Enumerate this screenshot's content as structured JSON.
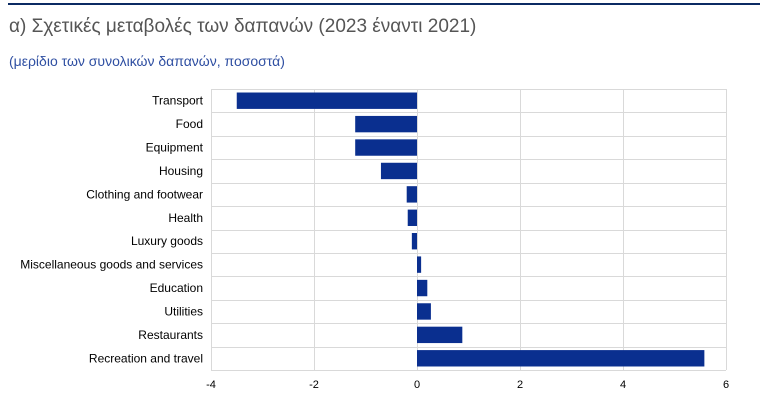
{
  "header": {
    "title": "α) Σχετικές μεταβολές των δαπανών (2023 έναντι 2021)",
    "subtitle": "(μερίδιο των συνολικών δαπανών, ποσοστά)"
  },
  "colors": {
    "bar": "#0a2f8f",
    "grid": "#d9d9d9",
    "title": "#555555",
    "subtitle": "#2f4fa2",
    "top_rule": "#0b2a63"
  },
  "chart_data": {
    "type": "bar",
    "orientation": "horizontal",
    "title": "α) Σχετικές μεταβολές των δαπανών (2023 έναντι 2021)",
    "subtitle": "(μερίδιο των συνολικών δαπανών, ποσοστά)",
    "categories": [
      "Transport",
      "Food",
      "Equipment",
      "Housing",
      "Clothing and footwear",
      "Health",
      "Luxury goods",
      "Miscellaneous goods and services",
      "Education",
      "Utilities",
      "Restaurants",
      "Recreation and travel"
    ],
    "values": [
      -3.5,
      -1.2,
      -1.2,
      -0.7,
      -0.2,
      -0.18,
      -0.1,
      0.08,
      0.2,
      0.27,
      0.88,
      5.58
    ],
    "xlim": [
      -4,
      6
    ],
    "xticks": [
      -4,
      -2,
      0,
      2,
      4,
      6
    ],
    "xlabel": "",
    "ylabel": "",
    "grid": true,
    "legend": "none"
  }
}
